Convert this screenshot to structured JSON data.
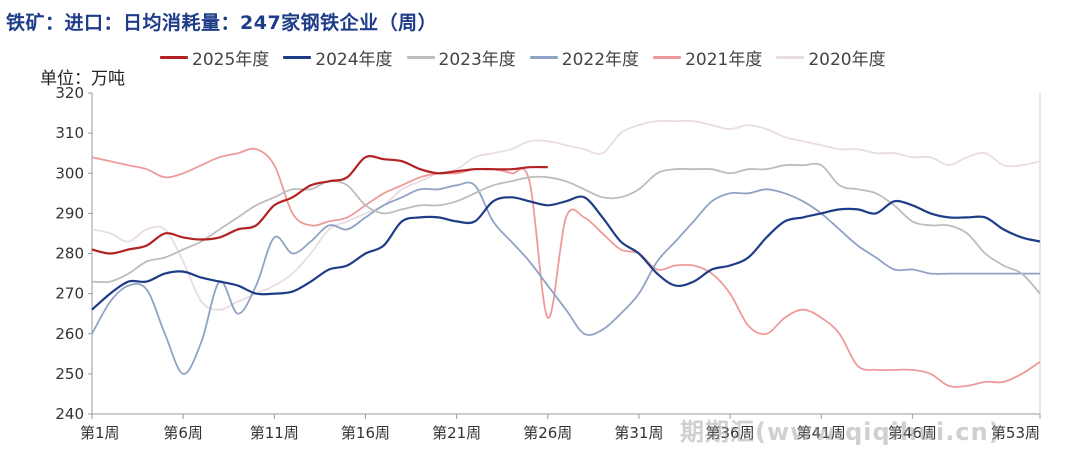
{
  "title": "铁矿：进口：日均消耗量：247家钢铁企业（周）",
  "unit_label": "单位：万吨",
  "watermark": "期期汇(www.qiqihui.cn)",
  "chart_data": {
    "type": "line",
    "title": "铁矿：进口：日均消耗量：247家钢铁企业（周）",
    "ylabel": "单位：万吨",
    "xlabel": "",
    "ylim": [
      240,
      320
    ],
    "y_ticks": [
      240,
      250,
      260,
      270,
      280,
      290,
      300,
      310,
      320
    ],
    "x_range": [
      1,
      53
    ],
    "x_tick_weeks": [
      1,
      6,
      11,
      16,
      21,
      26,
      31,
      36,
      41,
      46,
      53
    ],
    "x_tick_labels": [
      "第1周",
      "第6周",
      "第11周",
      "第16周",
      "第21周",
      "第26周",
      "第31周",
      "第36周",
      "第41周",
      "第46周",
      "第53周"
    ],
    "legend_position": "top",
    "grid": false,
    "series": [
      {
        "name": "2025年度",
        "color": "#b22222",
        "x": [
          1,
          2,
          3,
          4,
          5,
          6,
          7,
          8,
          9,
          10,
          11,
          12,
          13,
          14,
          15,
          16,
          17,
          18,
          19,
          20,
          21,
          22,
          23,
          24,
          25,
          26
        ],
        "values": [
          281,
          280,
          281,
          282,
          285,
          284,
          283.5,
          284,
          286,
          287,
          292,
          294,
          297,
          298,
          299,
          304,
          303.5,
          303,
          301,
          300,
          300.5,
          301,
          301,
          301,
          301.5,
          301.5
        ]
      },
      {
        "name": "2024年度",
        "color": "#1f3c88",
        "x": [
          1,
          2,
          3,
          4,
          5,
          6,
          7,
          8,
          9,
          10,
          11,
          12,
          13,
          14,
          15,
          16,
          17,
          18,
          19,
          20,
          21,
          22,
          23,
          24,
          25,
          26,
          27,
          28,
          29,
          30,
          31,
          32,
          33,
          34,
          35,
          36,
          37,
          38,
          39,
          40,
          41,
          42,
          43,
          44,
          45,
          46,
          47,
          48,
          49,
          50,
          51,
          52,
          53
        ],
        "values": [
          266,
          270,
          273,
          273,
          275,
          275.5,
          274,
          273,
          272,
          270,
          270,
          270.5,
          273,
          276,
          277,
          280,
          282,
          288,
          289,
          289,
          288,
          288,
          293,
          294,
          293,
          292,
          293,
          294,
          289,
          283,
          280,
          275,
          272,
          273,
          276,
          277,
          279,
          284,
          288,
          289,
          290,
          291,
          291,
          290,
          293,
          292,
          290,
          289,
          289,
          289,
          286,
          284,
          283
        ]
      },
      {
        "name": "2023年度",
        "color": "#bdbdbd",
        "x": [
          1,
          2,
          3,
          4,
          5,
          6,
          7,
          8,
          9,
          10,
          11,
          12,
          13,
          14,
          15,
          16,
          17,
          18,
          19,
          20,
          21,
          22,
          23,
          24,
          25,
          26,
          27,
          28,
          29,
          30,
          31,
          32,
          33,
          34,
          35,
          36,
          37,
          38,
          39,
          40,
          41,
          42,
          43,
          44,
          45,
          46,
          47,
          48,
          49,
          50,
          51,
          52,
          53
        ],
        "values": [
          273,
          273,
          275,
          278,
          279,
          281,
          283,
          286,
          289,
          292,
          294,
          296,
          296,
          298,
          297,
          292,
          290,
          291,
          292,
          292,
          293,
          295,
          297,
          298,
          299,
          299,
          298,
          296,
          294,
          294,
          296,
          300,
          301,
          301,
          301,
          300,
          301,
          301,
          302,
          302,
          302,
          297,
          296,
          295,
          292,
          288,
          287,
          287,
          285,
          280,
          277,
          275,
          270
        ]
      },
      {
        "name": "2022年度",
        "color": "#8fa3c4",
        "x": [
          1,
          2,
          3,
          4,
          5,
          6,
          7,
          8,
          9,
          10,
          11,
          12,
          13,
          14,
          15,
          16,
          17,
          18,
          19,
          20,
          21,
          22,
          23,
          24,
          25,
          26,
          27,
          28,
          29,
          30,
          31,
          32,
          33,
          34,
          35,
          36,
          37,
          38,
          39,
          40,
          41,
          42,
          43,
          44,
          45,
          46,
          47,
          48,
          49,
          50,
          51,
          52,
          53
        ],
        "values": [
          260,
          268,
          272,
          271,
          260,
          250,
          258,
          273,
          265,
          272,
          284,
          280,
          283,
          287,
          286,
          289,
          292,
          294,
          296,
          296,
          297,
          297,
          288,
          283,
          278,
          272,
          266,
          260,
          261,
          265,
          270,
          278,
          283,
          288,
          293,
          295,
          295,
          296,
          295,
          293,
          290,
          286,
          282,
          279,
          276,
          276,
          275,
          275,
          275,
          275,
          275,
          275,
          275
        ]
      },
      {
        "name": "2021年度",
        "color": "#ef9a9a",
        "x": [
          1,
          2,
          3,
          4,
          5,
          6,
          7,
          8,
          9,
          10,
          11,
          12,
          13,
          14,
          15,
          16,
          17,
          18,
          19,
          20,
          21,
          22,
          23,
          24,
          25,
          26,
          27,
          28,
          29,
          30,
          31,
          32,
          33,
          34,
          35,
          36,
          37,
          38,
          39,
          40,
          41,
          42,
          43,
          44,
          45,
          46,
          47,
          48,
          49,
          50,
          51,
          52,
          53
        ],
        "values": [
          304,
          303,
          302,
          301,
          299,
          300,
          302,
          304,
          305,
          306,
          302,
          290,
          287,
          288,
          289,
          292,
          295,
          297,
          299,
          300,
          300,
          301,
          301,
          300,
          298,
          264,
          289,
          289,
          285,
          281,
          280,
          276,
          277,
          277,
          275,
          270,
          262,
          260,
          264,
          266,
          264,
          260,
          252,
          251,
          251,
          251,
          250,
          247,
          247,
          248,
          248,
          250,
          253
        ]
      },
      {
        "name": "2020年度",
        "color": "#e9dce3",
        "x": [
          1,
          2,
          3,
          4,
          5,
          6,
          7,
          8,
          9,
          10,
          11,
          12,
          13,
          14,
          15,
          16,
          17,
          18,
          19,
          20,
          21,
          22,
          23,
          24,
          25,
          26,
          27,
          28,
          29,
          30,
          31,
          32,
          33,
          34,
          35,
          36,
          37,
          38,
          39,
          40,
          41,
          42,
          43,
          44,
          45,
          46,
          47,
          48,
          49,
          50,
          51,
          52,
          53
        ],
        "values": [
          286,
          285,
          283,
          286,
          286,
          278,
          268,
          266,
          268,
          270,
          272,
          275,
          280,
          286,
          288,
          290,
          292,
          296,
          298,
          300,
          301,
          304,
          305,
          306,
          308,
          308,
          307,
          306,
          305,
          310,
          312,
          313,
          313,
          313,
          312,
          311,
          312,
          311,
          309,
          308,
          307,
          306,
          306,
          305,
          305,
          304,
          304,
          302,
          304,
          305,
          302,
          302,
          303
        ]
      }
    ]
  }
}
